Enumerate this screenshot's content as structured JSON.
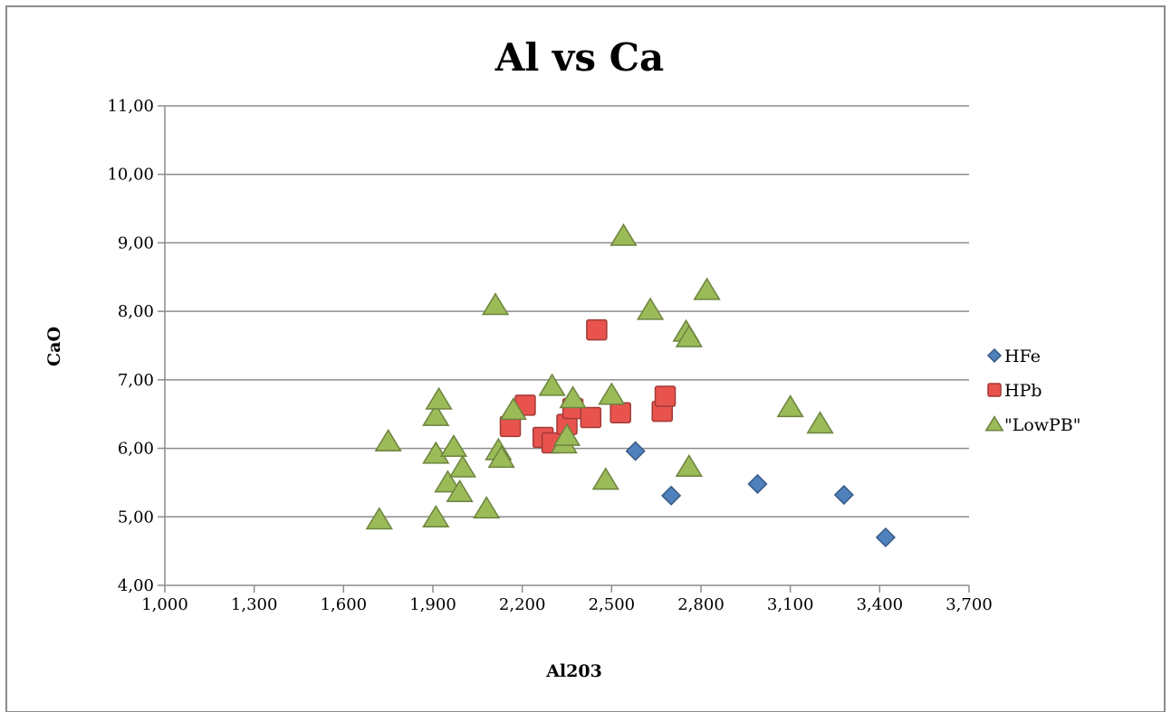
{
  "chart_data": {
    "type": "scatter",
    "title": "Al vs Ca",
    "xlabel": "Al203",
    "ylabel": "CaO",
    "xlim": [
      1.0,
      3.7
    ],
    "ylim": [
      4.0,
      11.0
    ],
    "x_ticks": [
      "1,000",
      "1,300",
      "1,600",
      "1,900",
      "2,200",
      "2,500",
      "2,800",
      "3,100",
      "3,400",
      "3,700"
    ],
    "y_ticks": [
      "4,00",
      "5,00",
      "6,00",
      "7,00",
      "8,00",
      "9,00",
      "10,00",
      "11,00"
    ],
    "grid": "horizontal",
    "legend_position": "right",
    "series": [
      {
        "name": "HFe",
        "marker": "diamond",
        "color": "#4F81BD",
        "points": [
          {
            "x": 2.58,
            "y": 5.96
          },
          {
            "x": 2.7,
            "y": 5.31
          },
          {
            "x": 2.99,
            "y": 5.48
          },
          {
            "x": 3.28,
            "y": 5.32
          },
          {
            "x": 3.42,
            "y": 4.7
          }
        ]
      },
      {
        "name": "HPb",
        "marker": "square",
        "color": "#E8534E",
        "points": [
          {
            "x": 2.16,
            "y": 6.32
          },
          {
            "x": 2.21,
            "y": 6.63
          },
          {
            "x": 2.27,
            "y": 6.16
          },
          {
            "x": 2.3,
            "y": 6.08
          },
          {
            "x": 2.35,
            "y": 6.35
          },
          {
            "x": 2.37,
            "y": 6.58
          },
          {
            "x": 2.43,
            "y": 6.45
          },
          {
            "x": 2.45,
            "y": 7.73
          },
          {
            "x": 2.53,
            "y": 6.52
          },
          {
            "x": 2.67,
            "y": 6.54
          },
          {
            "x": 2.68,
            "y": 6.76
          }
        ]
      },
      {
        "name": "\"LowPB\"",
        "marker": "triangle",
        "color": "#9BBB59",
        "points": [
          {
            "x": 1.72,
            "y": 4.96
          },
          {
            "x": 1.75,
            "y": 6.1
          },
          {
            "x": 1.91,
            "y": 5.92
          },
          {
            "x": 1.91,
            "y": 6.47
          },
          {
            "x": 1.92,
            "y": 6.71
          },
          {
            "x": 1.91,
            "y": 4.99
          },
          {
            "x": 1.95,
            "y": 5.5
          },
          {
            "x": 1.97,
            "y": 6.02
          },
          {
            "x": 1.99,
            "y": 5.36
          },
          {
            "x": 2.0,
            "y": 5.72
          },
          {
            "x": 2.08,
            "y": 5.12
          },
          {
            "x": 2.11,
            "y": 8.09
          },
          {
            "x": 2.12,
            "y": 5.97
          },
          {
            "x": 2.13,
            "y": 5.86
          },
          {
            "x": 2.17,
            "y": 6.56
          },
          {
            "x": 2.3,
            "y": 6.91
          },
          {
            "x": 2.34,
            "y": 6.07
          },
          {
            "x": 2.35,
            "y": 6.18
          },
          {
            "x": 2.37,
            "y": 6.73
          },
          {
            "x": 2.48,
            "y": 5.54
          },
          {
            "x": 2.5,
            "y": 6.78
          },
          {
            "x": 2.54,
            "y": 9.1
          },
          {
            "x": 2.63,
            "y": 8.02
          },
          {
            "x": 2.75,
            "y": 7.7
          },
          {
            "x": 2.76,
            "y": 7.62
          },
          {
            "x": 2.76,
            "y": 5.73
          },
          {
            "x": 2.82,
            "y": 8.31
          },
          {
            "x": 3.1,
            "y": 6.6
          },
          {
            "x": 3.2,
            "y": 6.36
          }
        ]
      }
    ]
  }
}
